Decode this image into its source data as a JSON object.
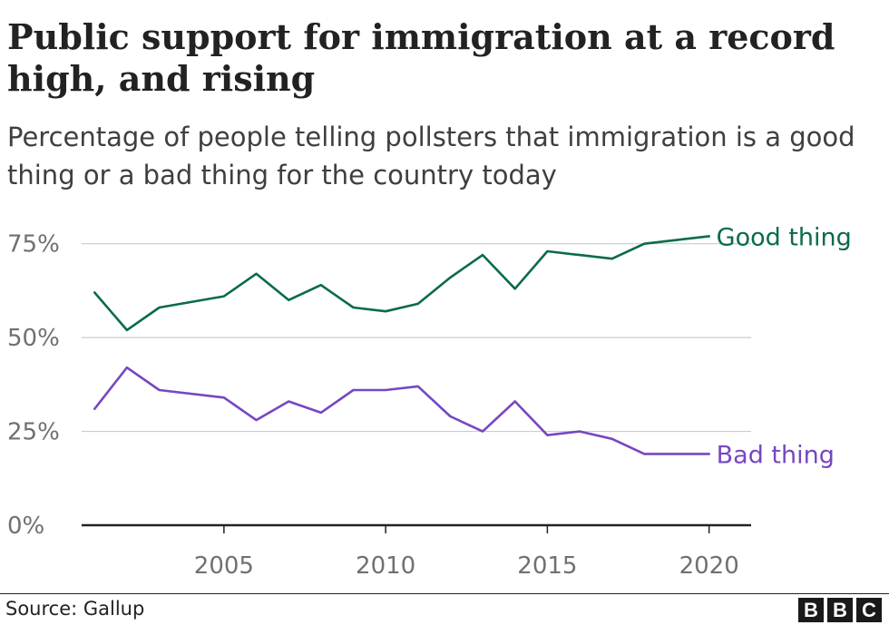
{
  "header": {
    "title": "Public support for immigration at a record high, and rising",
    "subtitle": "Percentage of people telling pollsters that immigration is a good thing or a bad thing for the country today"
  },
  "chart_data": {
    "type": "line",
    "x": [
      2001,
      2002,
      2003,
      2005,
      2006,
      2007,
      2008,
      2009,
      2010,
      2011,
      2012,
      2013,
      2014,
      2015,
      2016,
      2017,
      2018,
      2020
    ],
    "series": [
      {
        "name": "Good thing",
        "color": "#0a6b47",
        "values": [
          62,
          52,
          58,
          61,
          67,
          60,
          64,
          58,
          57,
          59,
          66,
          72,
          63,
          73,
          72,
          71,
          75,
          77
        ]
      },
      {
        "name": "Bad thing",
        "color": "#7647c2",
        "values": [
          31,
          42,
          36,
          34,
          28,
          33,
          30,
          36,
          36,
          37,
          29,
          25,
          33,
          24,
          25,
          23,
          19,
          19
        ]
      }
    ],
    "xticks": [
      "2005",
      "2010",
      "2015",
      "2020"
    ],
    "yticks": [
      "0%",
      "25%",
      "50%",
      "75%"
    ],
    "ylim": [
      0,
      80
    ],
    "xlim": [
      2000.6,
      2021.3
    ],
    "xlabel": "",
    "ylabel": ""
  },
  "footer": {
    "source": "Source: Gallup",
    "logo": [
      "B",
      "B",
      "C"
    ]
  }
}
